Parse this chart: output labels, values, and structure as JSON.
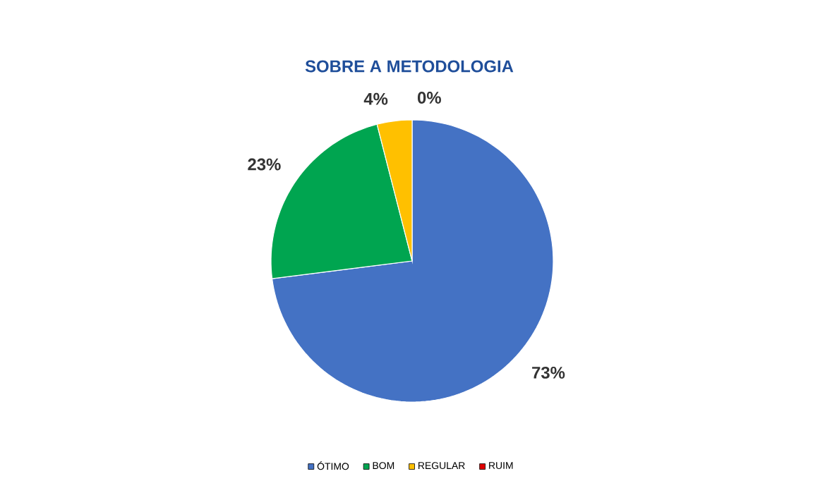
{
  "chart_data": {
    "type": "pie",
    "title": "SOBRE A METODOLOGIA",
    "categories": [
      "ÓTIMO",
      "BOM",
      "REGULAR",
      "RUIM"
    ],
    "values": [
      73,
      23,
      4,
      0
    ],
    "value_labels": [
      "73%",
      "23%",
      "4%",
      "0%"
    ],
    "colors": [
      "#4472c4",
      "#00a550",
      "#ffc000",
      "#e00000"
    ],
    "legend": "bottom"
  }
}
